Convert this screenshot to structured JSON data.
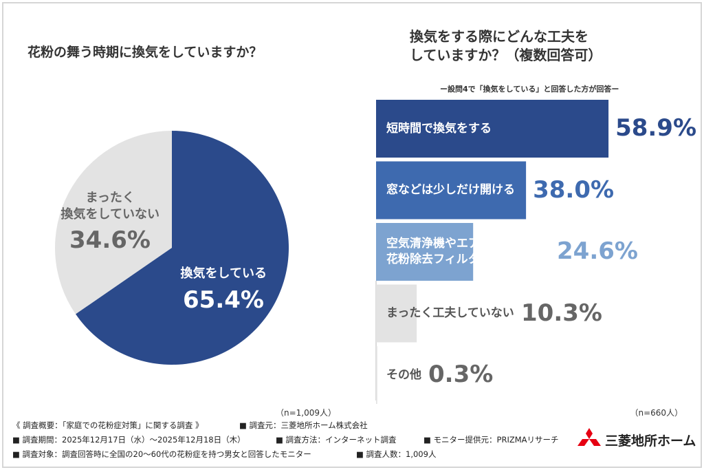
{
  "chart_data": [
    {
      "type": "pie",
      "title": "花粉の舞う時期に換気をしていますか？",
      "categories": [
        "換気をしている",
        "まったく\n換気をしていない"
      ],
      "values": [
        65.4,
        34.6
      ],
      "value_labels": [
        "65.4%",
        "34.6%"
      ],
      "colors": [
        "#2b4a8b",
        "#e3e3e3"
      ],
      "label_colors": [
        "#ffffff",
        "#666666"
      ],
      "note": "（n=1,009人）"
    },
    {
      "type": "bar",
      "horizontal": true,
      "title": "換気をする際にどんな工夫を\nしていますか？（複数回答可）",
      "subtitle": "ー設問4で「換気をしている」と回答した方が回答ー",
      "categories": [
        "短時間で換気をする",
        "窓などは少しだけ開ける",
        "空気清浄機やエアコンの\n花粉除去フィルターなどを使う",
        "まったく工夫していない",
        "その他"
      ],
      "values": [
        58.9,
        38.0,
        24.6,
        10.3,
        0.3
      ],
      "value_labels": [
        "58.9%",
        "38.0%",
        "24.6%",
        "10.3%",
        "0.3%"
      ],
      "colors": [
        "#2b4a8b",
        "#3e6aaf",
        "#7da3d0",
        "#e3e3e3",
        "#e3e3e3"
      ],
      "label_colors": [
        "#ffffff",
        "#ffffff",
        "#ffffff",
        "#555555",
        "#555555"
      ],
      "value_colors": [
        "#2b4a8b",
        "#3e6aaf",
        "#7da3d0",
        "#666666",
        "#666666"
      ],
      "xlim": [
        0,
        100
      ],
      "note": "（n=660人）"
    }
  ],
  "footer": [
    [
      "《 調査概要：「家庭での花粉症対策」に関する調査 》",
      "■ 調査元：三菱地所ホーム株式会社"
    ],
    [
      "■ 調査期間：2025年12月17日（水）〜2025年12月18日（木）",
      "■ 調査方法：インターネット調査",
      "■ モニター提供元：PRIZMAリサーチ"
    ],
    [
      "■ 調査対象：調査回答時に全国の20〜60代の花粉症を持つ男女と回答したモニター",
      "■ 調査人数：1,009人"
    ]
  ],
  "logo": "三菱地所ホーム"
}
